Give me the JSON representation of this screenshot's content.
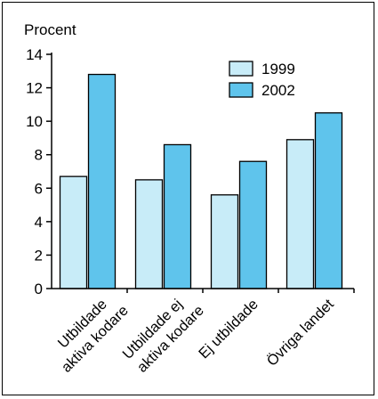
{
  "chart_data": {
    "type": "bar",
    "title": "",
    "ylabel": "Procent",
    "xlabel": "",
    "ylim": [
      0,
      14
    ],
    "yticks": [
      0,
      2,
      4,
      6,
      8,
      10,
      12,
      14
    ],
    "categories": [
      [
        "Utbildade",
        "aktiva kodare"
      ],
      [
        "Utbildade ej",
        "aktiva kodare"
      ],
      [
        "Ej utbildade"
      ],
      [
        "Övriga landet"
      ]
    ],
    "series": [
      {
        "name": "1999",
        "color": "#c8ecf8",
        "values": [
          6.7,
          6.5,
          5.6,
          8.9
        ]
      },
      {
        "name": "2002",
        "color": "#5fc4ec",
        "values": [
          12.8,
          8.6,
          7.6,
          10.5
        ]
      }
    ],
    "legend_position": "top-right",
    "grid": false
  }
}
